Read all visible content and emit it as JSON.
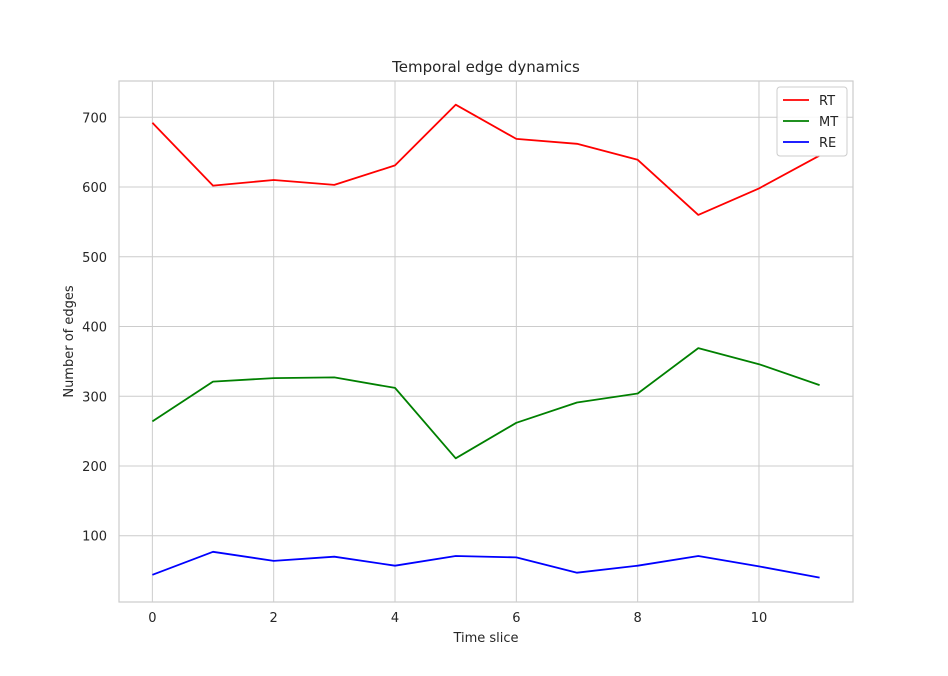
{
  "chart_data": {
    "type": "line",
    "title": "Temporal edge dynamics",
    "xlabel": "Time slice",
    "ylabel": "Number of edges",
    "x": [
      0,
      1,
      2,
      3,
      4,
      5,
      6,
      7,
      8,
      9,
      10,
      11
    ],
    "xlim": [
      -0.55,
      11.55
    ],
    "ylim": [
      5,
      752
    ],
    "xticks": [
      0,
      2,
      4,
      6,
      8,
      10
    ],
    "yticks": [
      100,
      200,
      300,
      400,
      500,
      600,
      700
    ],
    "grid": true,
    "legend_position": "top-right",
    "series": [
      {
        "name": "RT",
        "color": "#ff0000",
        "values": [
          692,
          602,
          610,
          603,
          631,
          718,
          669,
          662,
          639,
          560,
          598,
          645
        ]
      },
      {
        "name": "MT",
        "color": "#008000",
        "values": [
          264,
          321,
          326,
          327,
          312,
          211,
          262,
          291,
          304,
          369,
          346,
          316
        ]
      },
      {
        "name": "RE",
        "color": "#0000ff",
        "values": [
          44,
          77,
          64,
          70,
          57,
          71,
          69,
          47,
          57,
          71,
          56,
          40
        ]
      }
    ]
  }
}
